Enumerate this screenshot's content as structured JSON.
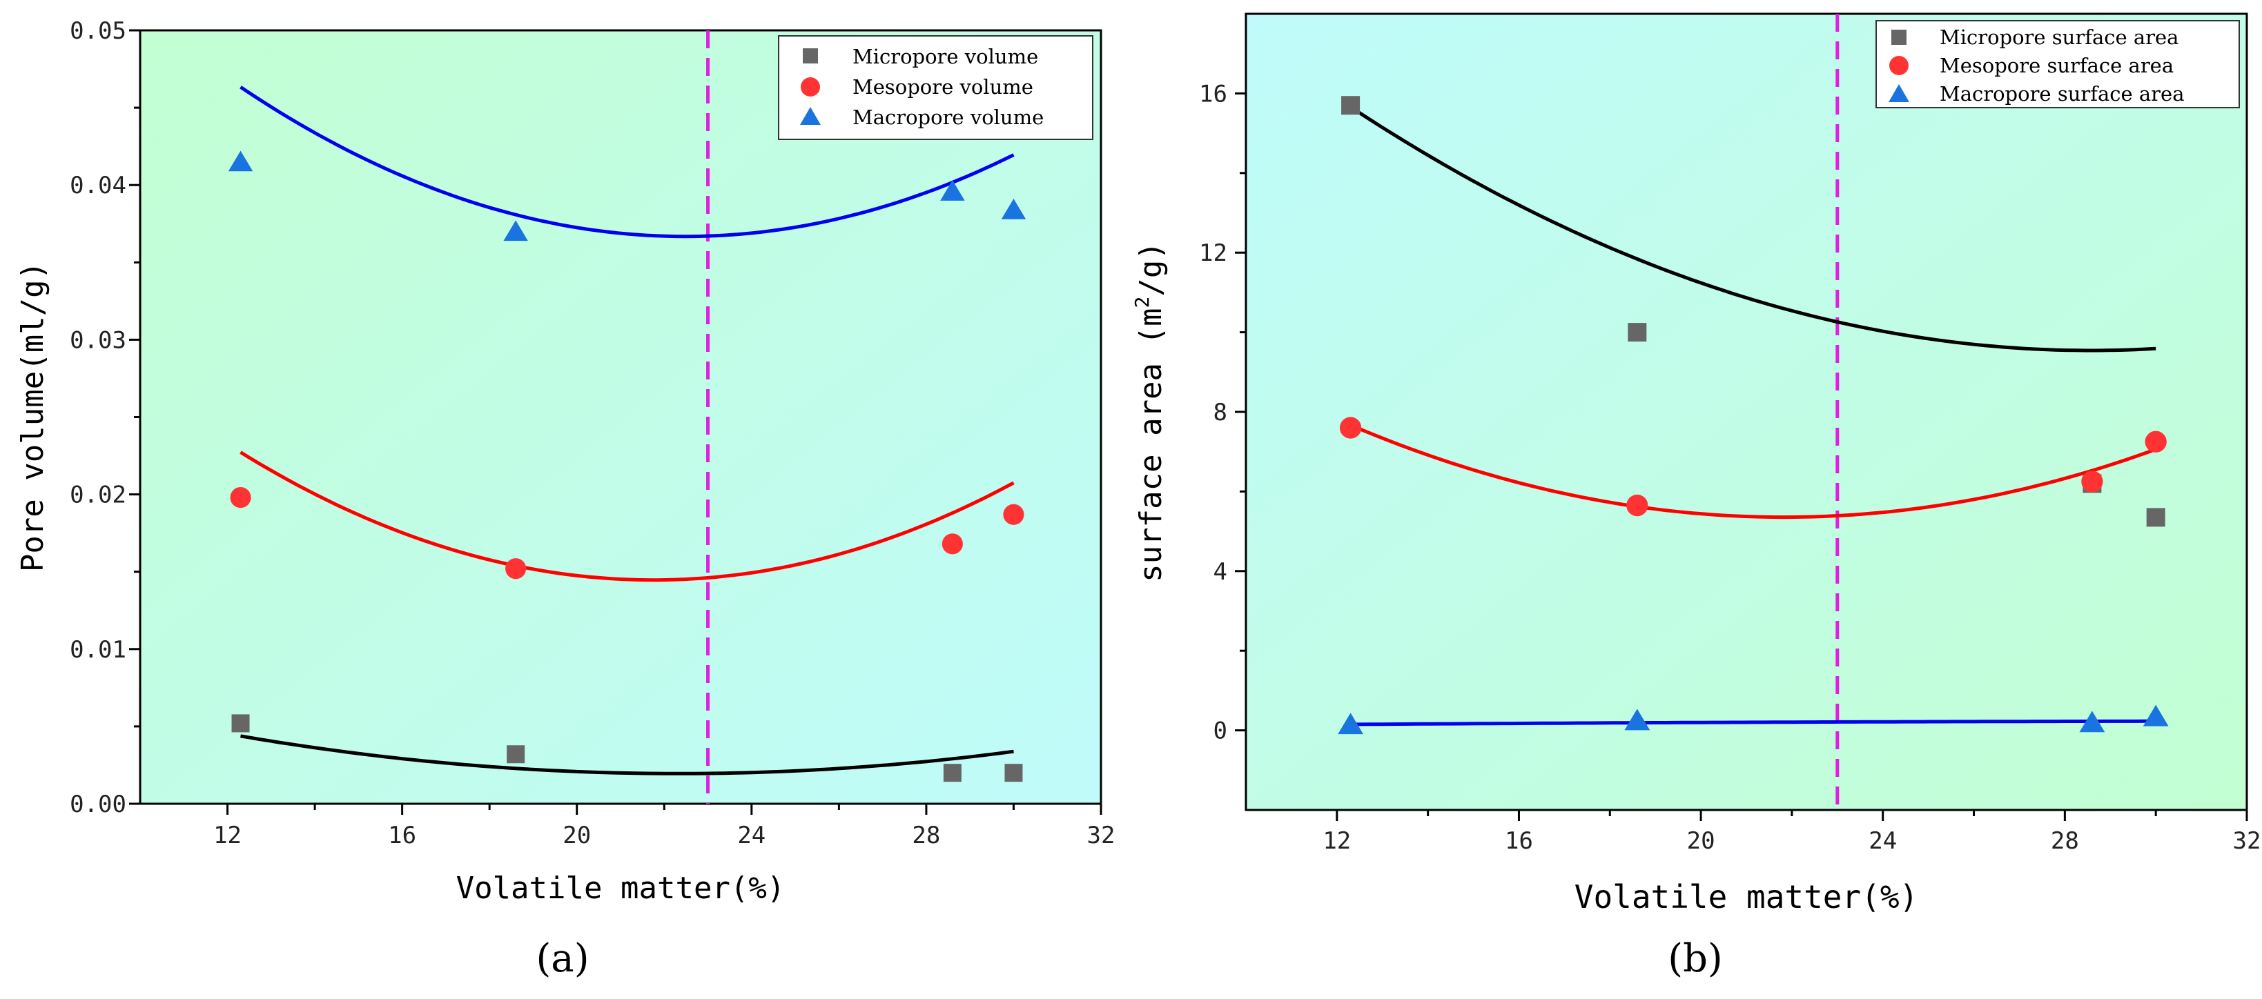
{
  "chart_data": [
    {
      "type": "scatter",
      "panel_label": "(a)",
      "xlabel": "Volatile matter(%)",
      "ylabel": "Pore volume(ml/g)",
      "xlim": [
        10,
        32
      ],
      "ylim": [
        0.0,
        0.05
      ],
      "xticks": [
        "12",
        "16",
        "20",
        "24",
        "28",
        "32"
      ],
      "yticks": [
        "0.00",
        "0.01",
        "0.02",
        "0.03",
        "0.04",
        "0.05"
      ],
      "reference_line_x": 23,
      "x": [
        12.3,
        18.6,
        28.6,
        30.0
      ],
      "series": [
        {
          "name": "Micropore volume",
          "marker": "square",
          "color": "#666666",
          "fit_color": "#000000",
          "values": [
            0.0052,
            0.0032,
            0.002,
            0.002
          ],
          "fit": [
            2.42e-05,
            -0.00108,
            0.014
          ]
        },
        {
          "name": "Mesopore volume",
          "marker": "circle",
          "color": "#ff3333",
          "fit_color": "#ff0000",
          "values": [
            0.0198,
            0.0152,
            0.0168,
            0.0187
          ],
          "fit": [
            9.24e-05,
            -0.00402,
            0.05819
          ]
        },
        {
          "name": "Macropore volume",
          "marker": "triangle",
          "color": "#1a74e0",
          "fit_color": "#0000ee",
          "values": [
            0.0415,
            0.037,
            0.0396,
            0.0384
          ],
          "fit": [
            9.32e-05,
            -0.00419,
            0.08377
          ]
        }
      ],
      "legend_position": "top-right",
      "background_gradient": [
        "#c2ffd2",
        "#c0fbfb"
      ]
    },
    {
      "type": "scatter",
      "panel_label": "(b)",
      "xlabel": "Volatile matter(%)",
      "ylabel_main": "surface area ",
      "ylabel_unit": "(m",
      "ylabel_sup": "2",
      "ylabel_tail": "/g)",
      "xlim": [
        10,
        32
      ],
      "ylim": [
        -2,
        18
      ],
      "xticks": [
        "12",
        "16",
        "20",
        "24",
        "28",
        "32"
      ],
      "yticks": [
        "0",
        "4",
        "8",
        "12",
        "16"
      ],
      "reference_line_x": 23,
      "x": [
        12.3,
        18.6,
        28.6,
        30.0
      ],
      "series": [
        {
          "name": "Micropore surface area",
          "marker": "square",
          "color": "#666666",
          "fit_color": "#000000",
          "values": [
            15.7,
            10.0,
            6.2,
            5.35
          ],
          "fit": [
            0.0231,
            -1.32,
            28.4
          ]
        },
        {
          "name": "Mesopore surface area",
          "marker": "circle",
          "color": "#ff3333",
          "fit_color": "#ff0000",
          "values": [
            7.6,
            5.65,
            6.25,
            7.25
          ],
          "fit": [
            0.0255,
            -1.113,
            17.5
          ]
        },
        {
          "name": "Macropore surface area",
          "marker": "triangle",
          "color": "#1a74e0",
          "fit_color": "#0000ee",
          "values": [
            0.15,
            0.25,
            0.2,
            0.35
          ],
          "fit": [
            -0.00016,
            0.0113,
            0.0352
          ]
        }
      ],
      "legend_position": "top-right",
      "background_gradient": [
        "#c0fbfb",
        "#c2ffd2"
      ]
    }
  ]
}
